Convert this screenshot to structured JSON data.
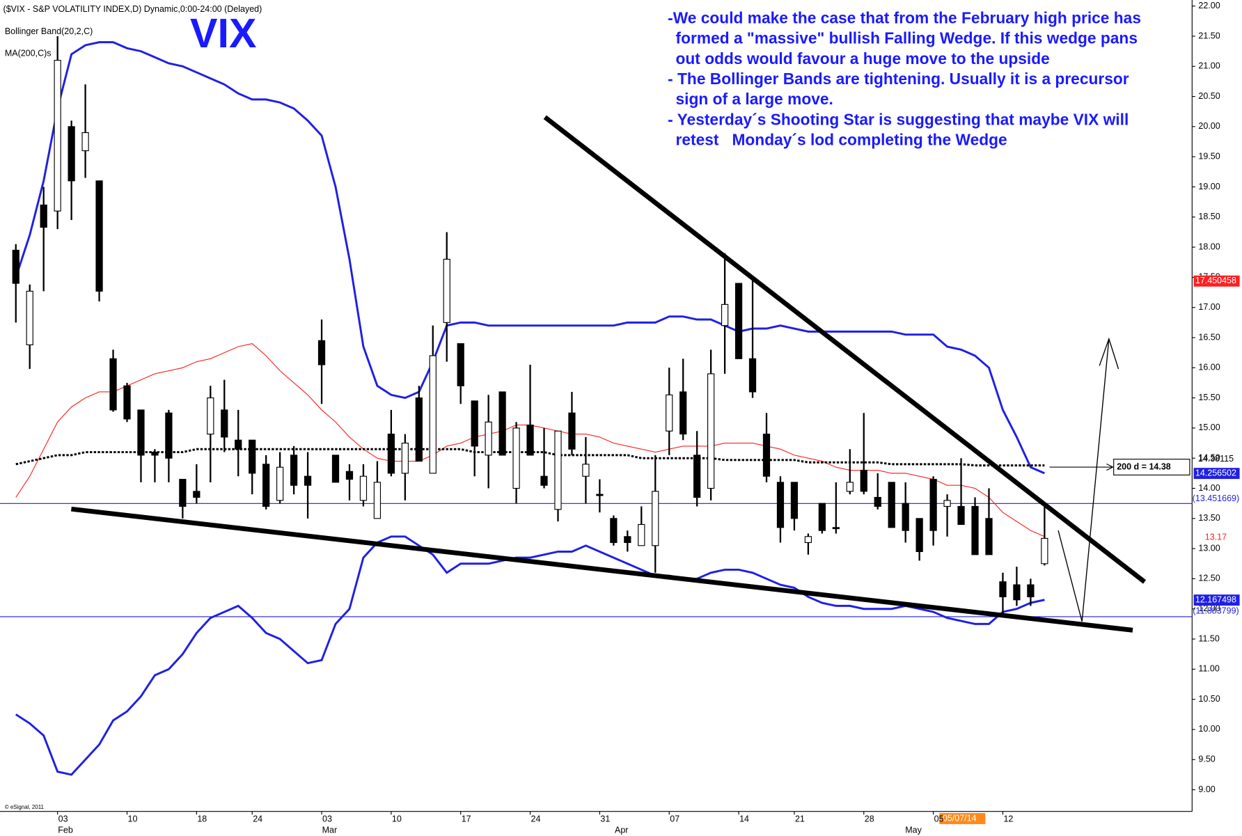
{
  "chart_data": {
    "type": "candlestick",
    "title": "($VIX - S&P VOLATILITY INDEX,D) Dynamic,0:00-24:00 (Delayed)",
    "indicators": [
      "Bollinger Band(20,2,C)",
      "MA(200,C)s"
    ],
    "symbol_label": "VIX",
    "commentary": [
      "-We could make the case that from the February high price has",
      "formed a \"massive\" bullish Falling Wedge. If this wedge pans",
      "out odds would favour a huge move to the upside",
      "- The Bollinger Bands are tightening. Usually it is a precursor",
      "sign of a large move.",
      "- Yesterday´s Shooting Star is suggesting that maybe VIX will",
      "retest   Monday´s lod completing the Wedge"
    ],
    "ma_annotation": "200 d = 14.38",
    "date_marker": "05/07/14",
    "copyright": "© eSignal, 2011",
    "categories": [
      null,
      null,
      null,
      "03",
      null,
      null,
      null,
      null,
      "10",
      null,
      null,
      null,
      null,
      "18",
      null,
      null,
      null,
      "24",
      null,
      null,
      null,
      null,
      "03",
      null,
      null,
      null,
      null,
      "10",
      null,
      null,
      null,
      null,
      "17",
      null,
      null,
      null,
      null,
      "24",
      null,
      null,
      null,
      null,
      "31",
      null,
      null,
      null,
      null,
      "07",
      null,
      null,
      null,
      null,
      "14",
      null,
      null,
      null,
      "21",
      null,
      null,
      null,
      null,
      "28",
      null,
      null,
      null,
      null,
      "05",
      null,
      null,
      null,
      null,
      "12",
      null,
      null,
      null
    ],
    "months": [
      null,
      null,
      null,
      "Feb",
      null,
      null,
      null,
      null,
      null,
      null,
      null,
      null,
      null,
      null,
      null,
      null,
      null,
      null,
      null,
      null,
      null,
      null,
      "Mar",
      null,
      null,
      null,
      null,
      null,
      null,
      null,
      null,
      null,
      null,
      null,
      null,
      null,
      null,
      null,
      null,
      null,
      null,
      null,
      null,
      "Apr",
      null,
      null,
      null,
      null,
      null,
      null,
      null,
      null,
      null,
      null,
      null,
      null,
      null,
      null,
      null,
      null,
      null,
      null,
      null,
      null,
      "May",
      null,
      null,
      null,
      null,
      null,
      null,
      null,
      null,
      null,
      null
    ],
    "open": [
      17.95,
      16.38,
      18.7,
      18.6,
      20.0,
      19.6,
      19.1,
      16.15,
      15.7,
      15.3,
      14.6,
      15.25,
      14.15,
      13.95,
      14.9,
      15.3,
      14.8,
      14.8,
      14.4,
      13.8,
      14.55,
      14.2,
      16.45,
      14.55,
      14.28,
      13.8,
      13.5,
      14.9,
      14.25,
      15.5,
      14.25,
      16.75,
      16.4,
      15.45,
      14.55,
      15.6,
      14.0,
      15.05,
      14.2,
      13.65,
      15.25,
      14.2,
      13.9,
      13.5,
      13.2,
      13.05,
      13.05,
      14.95,
      15.6,
      14.55,
      14.0,
      16.7,
      17.4,
      16.15,
      14.9,
      14.1,
      14.1,
      13.1,
      13.75,
      13.35,
      13.95,
      14.3,
      13.85,
      14.1,
      13.75,
      13.5,
      14.15,
      13.7,
      13.7,
      13.7,
      13.5,
      12.45,
      12.4,
      12.4,
      12.75
    ],
    "high": [
      18.05,
      17.38,
      19.0,
      21.5,
      20.1,
      20.7,
      19.1,
      16.3,
      15.75,
      15.3,
      14.65,
      15.3,
      14.15,
      14.4,
      15.7,
      15.8,
      15.3,
      14.8,
      14.55,
      14.6,
      14.7,
      14.6,
      16.8,
      14.55,
      14.4,
      14.4,
      14.45,
      15.3,
      14.9,
      15.7,
      16.7,
      18.25,
      16.4,
      15.45,
      15.55,
      15.6,
      15.1,
      16.05,
      15.0,
      14.95,
      15.6,
      14.85,
      14.15,
      13.55,
      13.3,
      13.7,
      14.55,
      16.0,
      16.15,
      14.95,
      16.3,
      17.9,
      17.4,
      17.5,
      15.25,
      14.2,
      14.1,
      13.25,
      13.75,
      14.1,
      14.65,
      15.25,
      14.25,
      14.1,
      14.1,
      13.5,
      14.2,
      13.9,
      14.5,
      13.85,
      14.0,
      12.6,
      12.7,
      12.5,
      13.75
    ],
    "low": [
      16.75,
      15.98,
      17.27,
      18.3,
      18.45,
      19.15,
      17.1,
      15.27,
      15.1,
      14.1,
      14.1,
      14.1,
      13.5,
      13.75,
      14.1,
      14.6,
      14.2,
      13.9,
      13.65,
      13.75,
      13.9,
      13.5,
      15.4,
      14.1,
      13.8,
      13.7,
      13.5,
      14.2,
      13.8,
      14.45,
      14.25,
      16.1,
      15.4,
      14.2,
      14.0,
      14.55,
      13.75,
      14.55,
      14.0,
      13.45,
      14.55,
      13.75,
      13.6,
      13.05,
      12.95,
      13.05,
      12.6,
      14.55,
      14.8,
      13.7,
      13.8,
      15.9,
      16.15,
      15.5,
      14.1,
      13.1,
      13.3,
      12.9,
      13.25,
      13.25,
      13.9,
      13.9,
      13.65,
      13.35,
      13.1,
      12.8,
      13.05,
      13.2,
      13.4,
      12.9,
      12.9,
      11.9,
      12.05,
      12.05,
      12.72
    ],
    "close": [
      17.4,
      17.27,
      18.33,
      21.1,
      19.1,
      19.9,
      17.27,
      15.3,
      15.15,
      14.55,
      14.55,
      14.5,
      13.7,
      13.85,
      15.5,
      14.85,
      14.65,
      14.25,
      13.7,
      14.35,
      14.05,
      14.05,
      16.05,
      14.1,
      14.15,
      14.2,
      14.1,
      14.25,
      14.75,
      14.45,
      16.2,
      17.8,
      15.7,
      14.7,
      15.1,
      14.55,
      15.0,
      14.55,
      14.05,
      14.95,
      14.65,
      14.4,
      13.88,
      13.1,
      13.1,
      13.4,
      13.95,
      15.55,
      14.9,
      13.85,
      15.9,
      17.05,
      16.15,
      15.6,
      14.2,
      13.35,
      13.5,
      13.2,
      13.3,
      13.33,
      14.1,
      13.95,
      13.7,
      13.35,
      13.3,
      12.95,
      13.3,
      13.8,
      13.4,
      12.9,
      12.9,
      12.2,
      12.15,
      12.2,
      13.17
    ],
    "lines": [
      {
        "color": "#1f1fe6",
        "style": "solid",
        "values": [
          17.5,
          18.2,
          19.1,
          20.3,
          21.2,
          21.35,
          21.4,
          21.4,
          21.3,
          21.25,
          21.15,
          21.05,
          21.0,
          20.9,
          20.8,
          20.7,
          20.55,
          20.45,
          20.45,
          20.4,
          20.3,
          20.1,
          19.85,
          19.0,
          17.8,
          16.35,
          15.7,
          15.55,
          15.5,
          15.6,
          16.1,
          16.7,
          16.75,
          16.75,
          16.7,
          16.7,
          16.7,
          16.7,
          16.7,
          16.7,
          16.7,
          16.7,
          16.7,
          16.7,
          16.75,
          16.75,
          16.75,
          16.85,
          16.85,
          16.8,
          16.8,
          16.7,
          16.6,
          16.65,
          16.65,
          16.7,
          16.65,
          16.6,
          16.6,
          16.6,
          16.6,
          16.6,
          16.6,
          16.6,
          16.55,
          16.55,
          16.55,
          16.35,
          16.3,
          16.2,
          16.0,
          15.3,
          14.85,
          14.35,
          14.25
        ]
      },
      {
        "color": "#1f1fe6",
        "style": "solid",
        "values": [
          10.25,
          10.1,
          9.9,
          9.3,
          9.25,
          9.5,
          9.75,
          10.15,
          10.3,
          10.55,
          10.9,
          11.0,
          11.25,
          11.6,
          11.85,
          11.95,
          12.05,
          11.85,
          11.6,
          11.5,
          11.3,
          11.1,
          11.15,
          11.75,
          12.0,
          12.85,
          13.1,
          13.2,
          13.2,
          13.05,
          12.9,
          12.6,
          12.75,
          12.75,
          12.75,
          12.8,
          12.85,
          12.85,
          12.9,
          12.95,
          12.95,
          13.05,
          12.95,
          12.85,
          12.75,
          12.65,
          12.55,
          12.55,
          12.5,
          12.5,
          12.6,
          12.65,
          12.65,
          12.6,
          12.5,
          12.4,
          12.35,
          12.2,
          12.1,
          12.05,
          12.05,
          12.0,
          12.0,
          12.0,
          12.05,
          12.0,
          11.95,
          11.85,
          11.8,
          11.75,
          11.75,
          11.95,
          12.0,
          12.1,
          12.15
        ]
      },
      {
        "color": "#ff2020",
        "style": "thin",
        "values": [
          13.85,
          14.2,
          14.65,
          15.1,
          15.35,
          15.5,
          15.6,
          15.6,
          15.7,
          15.8,
          15.9,
          15.95,
          16.0,
          16.1,
          16.15,
          16.25,
          16.35,
          16.4,
          16.2,
          15.95,
          15.75,
          15.55,
          15.3,
          15.1,
          14.85,
          14.65,
          14.5,
          14.45,
          14.45,
          14.45,
          14.55,
          14.7,
          14.75,
          14.85,
          14.9,
          14.95,
          15.05,
          15.05,
          15.0,
          14.95,
          14.9,
          14.9,
          14.85,
          14.75,
          14.7,
          14.65,
          14.6,
          14.65,
          14.7,
          14.7,
          14.7,
          14.75,
          14.75,
          14.75,
          14.7,
          14.65,
          14.55,
          14.5,
          14.45,
          14.35,
          14.3,
          14.3,
          14.3,
          14.25,
          14.25,
          14.2,
          14.15,
          14.05,
          14.05,
          14.0,
          13.85,
          13.6,
          13.45,
          13.3,
          13.2
        ]
      },
      {
        "color": "#000000",
        "style": "dotted",
        "values": [
          14.4,
          14.45,
          14.5,
          14.55,
          14.55,
          14.6,
          14.6,
          14.6,
          14.6,
          14.6,
          14.6,
          14.6,
          14.6,
          14.65,
          14.65,
          14.65,
          14.65,
          14.65,
          14.65,
          14.65,
          14.65,
          14.65,
          14.65,
          14.65,
          14.65,
          14.65,
          14.65,
          14.65,
          14.65,
          14.65,
          14.65,
          14.65,
          14.65,
          14.6,
          14.6,
          14.6,
          14.6,
          14.6,
          14.6,
          14.55,
          14.55,
          14.55,
          14.55,
          14.55,
          14.55,
          14.5,
          14.5,
          14.5,
          14.5,
          14.5,
          14.5,
          14.47,
          14.47,
          14.47,
          14.47,
          14.47,
          14.47,
          14.43,
          14.43,
          14.43,
          14.43,
          14.43,
          14.43,
          14.4,
          14.4,
          14.4,
          14.4,
          14.4,
          14.4,
          14.38,
          14.38,
          14.38,
          14.38,
          14.38,
          14.38
        ]
      }
    ],
    "ylim": [
      8.64,
      22.1
    ],
    "yticks": [
      {
        "value": 9,
        "label": "9.00"
      },
      {
        "value": 9.5,
        "label": "9.50"
      },
      {
        "value": 10,
        "label": "10.00"
      },
      {
        "value": 10.5,
        "label": "10.50"
      },
      {
        "value": 11,
        "label": "11.00"
      },
      {
        "value": 11.5,
        "label": "11.50"
      },
      {
        "value": 12,
        "label": "12.00"
      },
      {
        "value": 12.5,
        "label": "12.50"
      },
      {
        "value": 13,
        "label": "13.00"
      },
      {
        "value": 13.5,
        "label": "13.50"
      },
      {
        "value": 14,
        "label": "14.00"
      },
      {
        "value": 14.5,
        "label": "14.50"
      },
      {
        "value": 15,
        "label": "15.00"
      },
      {
        "value": 15.5,
        "label": "15.50"
      },
      {
        "value": 16,
        "label": "16.00"
      },
      {
        "value": 16.5,
        "label": "16.50"
      },
      {
        "value": 17,
        "label": "17.00"
      },
      {
        "value": 17.5,
        "label": "17.50"
      },
      {
        "value": 18,
        "label": "18.00"
      },
      {
        "value": 18.5,
        "label": "18.50"
      },
      {
        "value": 19,
        "label": "19.00"
      },
      {
        "value": 19.5,
        "label": "19.50"
      },
      {
        "value": 20,
        "label": "20.00"
      },
      {
        "value": 20.5,
        "label": "20.50"
      },
      {
        "value": 21,
        "label": "21.00"
      },
      {
        "value": 21.5,
        "label": "21.50"
      },
      {
        "value": 22,
        "label": "22.00"
      }
    ],
    "price_markers": [
      {
        "value": 17.450458,
        "label": "17.450458",
        "color": "#ff2020",
        "boxed": true
      },
      {
        "value": 14.38115,
        "label": "14.38115",
        "color": "#000000",
        "boxed": false
      },
      {
        "value": 14.256502,
        "label": "14.256502",
        "color": "#1f1fe6",
        "boxed": true
      },
      {
        "value": 13.451669,
        "label": "(13.451669)",
        "color": "#1f1fe6",
        "boxed": false
      },
      {
        "value": 13.17,
        "label": "13.17",
        "color": "#ff2020",
        "boxed": false
      },
      {
        "value": 12.167498,
        "label": "12.167498",
        "color": "#1f1fe6",
        "boxed": true
      },
      {
        "value": 11.883799,
        "label": "(11.883799)",
        "color": "#1f1fe6",
        "boxed": false
      }
    ]
  }
}
